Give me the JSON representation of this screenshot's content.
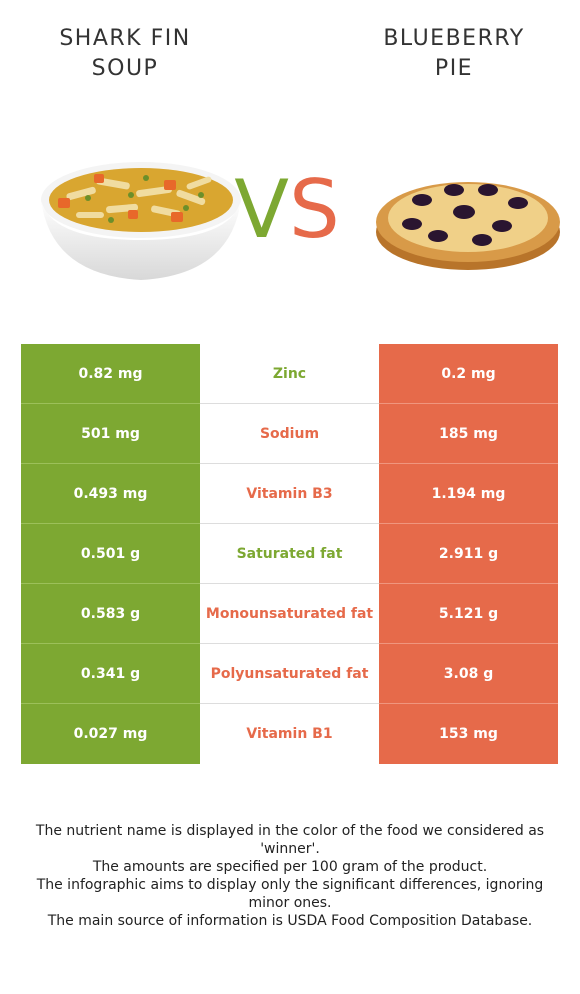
{
  "foods": {
    "left": {
      "name": "SHARK FIN\nSOUP",
      "color": "#7da832"
    },
    "right": {
      "name": "BLUEBERRY\nPIE",
      "color": "#e66a4a"
    }
  },
  "vs": {
    "v": "V",
    "s": "S"
  },
  "rows": [
    {
      "left": "0.82 mg",
      "nutrient": "Zinc",
      "right": "0.2 mg",
      "winner": "left"
    },
    {
      "left": "501 mg",
      "nutrient": "Sodium",
      "right": "185 mg",
      "winner": "right"
    },
    {
      "left": "0.493 mg",
      "nutrient": "Vitamin B3",
      "right": "1.194 mg",
      "winner": "right"
    },
    {
      "left": "0.501 g",
      "nutrient": "Saturated fat",
      "right": "2.911 g",
      "winner": "left"
    },
    {
      "left": "0.583 g",
      "nutrient": "Monounsaturated fat",
      "right": "5.121 g",
      "winner": "right"
    },
    {
      "left": "0.341 g",
      "nutrient": "Polyunsaturated fat",
      "right": "3.08 g",
      "winner": "right"
    },
    {
      "left": "0.027 mg",
      "nutrient": "Vitamin B1",
      "right": "153 mg",
      "winner": "right"
    }
  ],
  "footnotes": [
    "The nutrient name is displayed in the color of the food we considered as 'winner'.",
    "The amounts are specified per 100 gram of the product.",
    "The infographic aims to display only the significant differences, ignoring minor ones.",
    "The main source of information is USDA Food Composition Database."
  ]
}
